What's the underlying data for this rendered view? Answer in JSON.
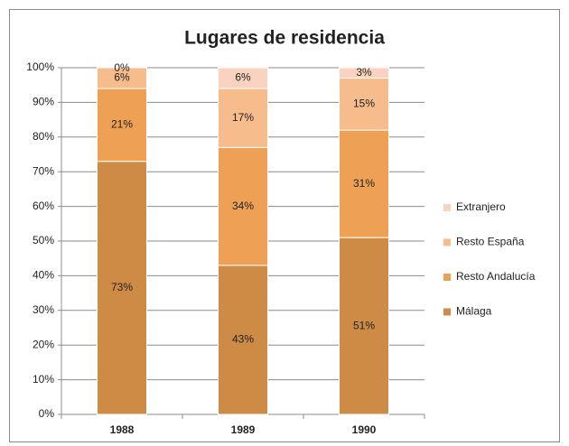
{
  "chart_data": {
    "type": "stacked_bar_percent",
    "title": "Lugares de residencia",
    "categories": [
      "1988",
      "1989",
      "1990"
    ],
    "series": [
      {
        "name": "Málaga",
        "color": "#cd8b45",
        "values": [
          73,
          43,
          51
        ],
        "value_labels": [
          "73%",
          "43%",
          "51%"
        ]
      },
      {
        "name": "Resto Andalucía",
        "color": "#eea155",
        "values": [
          21,
          34,
          31
        ],
        "value_labels": [
          "21%",
          "34%",
          "31%"
        ]
      },
      {
        "name": "Resto España",
        "color": "#f7bc8c",
        "values": [
          6,
          17,
          15
        ],
        "value_labels": [
          "6%",
          "17%",
          "15%"
        ]
      },
      {
        "name": "Extranjero",
        "color": "#fad3c0",
        "values": [
          0,
          6,
          3
        ],
        "value_labels": [
          "0%",
          "6%",
          "3%"
        ]
      }
    ],
    "ylim": [
      0,
      100
    ],
    "yticks": [
      {
        "value": 0,
        "label": "0%"
      },
      {
        "value": 10,
        "label": "10%"
      },
      {
        "value": 20,
        "label": "20%"
      },
      {
        "value": 30,
        "label": "30%"
      },
      {
        "value": 40,
        "label": "40%"
      },
      {
        "value": 50,
        "label": "50%"
      },
      {
        "value": 60,
        "label": "60%"
      },
      {
        "value": 70,
        "label": "70%"
      },
      {
        "value": 80,
        "label": "80%"
      },
      {
        "value": 90,
        "label": "90%"
      },
      {
        "value": 100,
        "label": "100%"
      }
    ],
    "grid": true,
    "legend": "right"
  }
}
